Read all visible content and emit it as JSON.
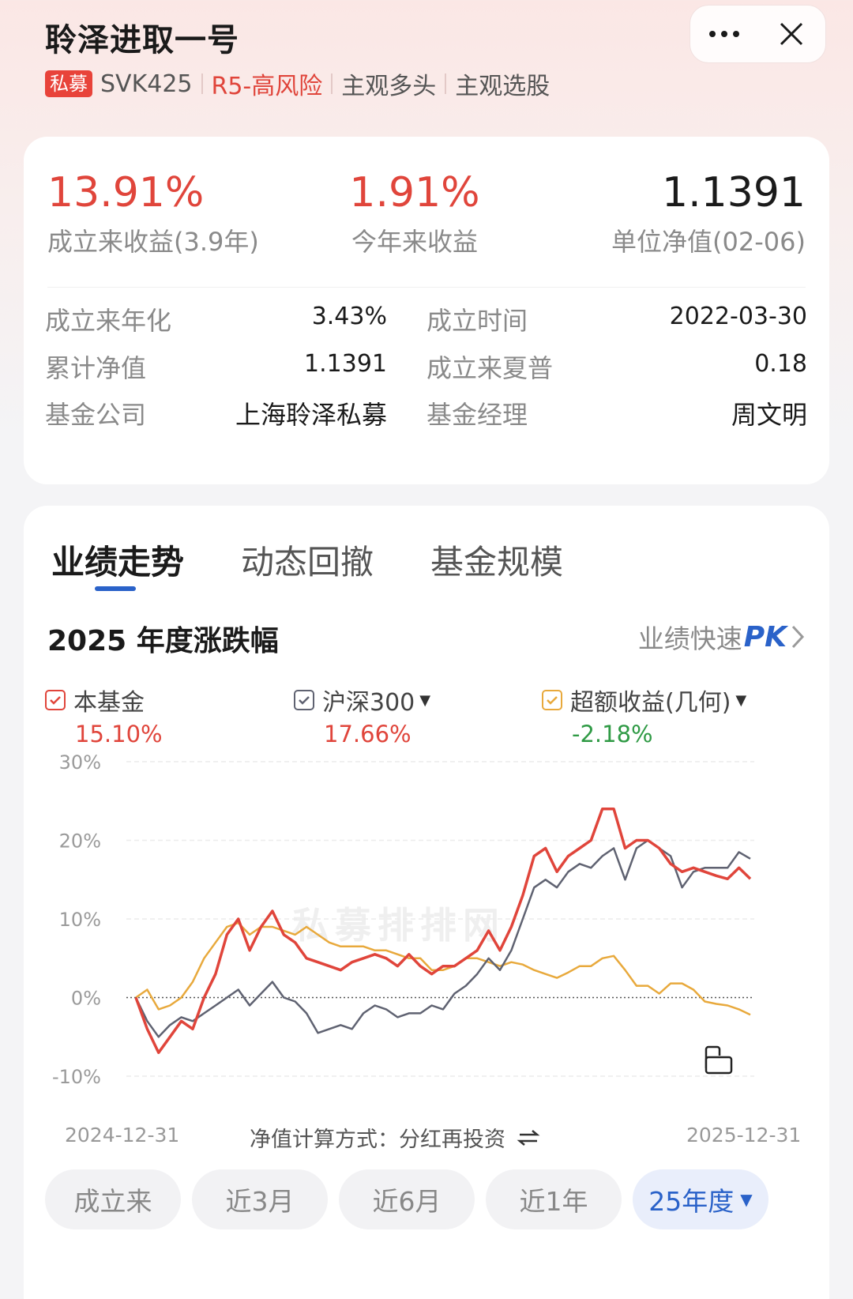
{
  "header": {
    "title": "聆泽进取一号",
    "badge": "私募",
    "code": "SVK425",
    "risk": "R5-高风险",
    "strategy1": "主观多头",
    "strategy2": "主观选股"
  },
  "capsule": {
    "more_icon": "more-dots-icon",
    "close_icon": "close-icon"
  },
  "summary": {
    "since_inception": {
      "value": "13.91%",
      "label": "成立来收益(3.9年)"
    },
    "ytd": {
      "value": "1.91%",
      "label": "今年来收益"
    },
    "nav": {
      "value": "1.1391",
      "label": "单位净值(02-06)"
    }
  },
  "details": {
    "annualized": {
      "label": "成立来年化",
      "value": "3.43%"
    },
    "inception_date": {
      "label": "成立时间",
      "value": "2022-03-30"
    },
    "cumulative_nav": {
      "label": "累计净值",
      "value": "1.1391"
    },
    "sharpe": {
      "label": "成立来夏普",
      "value": "0.18"
    },
    "company": {
      "label": "基金公司",
      "value": "上海聆泽私募"
    },
    "manager": {
      "label": "基金经理",
      "value": "周文明"
    }
  },
  "tabs": [
    "业绩走势",
    "动态回撤",
    "基金规模"
  ],
  "section": {
    "title": "2025 年度涨跌幅",
    "pk_prefix": "业绩快速",
    "pk": "PK"
  },
  "legend": [
    {
      "name": "本基金",
      "value": "15.10%",
      "color": "#e0453b"
    },
    {
      "name": "沪深300",
      "value": "17.66%",
      "color": "#5f6271"
    },
    {
      "name": "超额收益(几何)",
      "value": "-2.18%",
      "color": "#e8a93c"
    }
  ],
  "watermark": "私募排排网",
  "chart_data": {
    "type": "line",
    "x_start": "2024-12-31",
    "x_end": "2025-12-31",
    "yticks": [
      "30%",
      "20%",
      "10%",
      "0%",
      "-10%"
    ],
    "ylim": [
      -10,
      30
    ],
    "series": [
      {
        "name": "本基金",
        "color": "#e0453b",
        "values": [
          0,
          -4,
          -7,
          -5,
          -3,
          -4,
          0,
          3,
          8,
          10,
          6,
          9,
          11,
          8,
          7,
          5,
          4.5,
          4,
          3.5,
          4.5,
          5,
          5.5,
          5,
          4,
          5.5,
          4,
          3,
          4,
          4,
          5,
          6,
          8.5,
          6,
          9,
          13,
          18,
          19,
          16,
          18,
          19,
          20,
          24,
          24,
          19,
          20,
          20,
          19,
          17,
          16,
          16.5,
          16,
          15.5,
          15.1,
          16.5,
          15.1
        ]
      },
      {
        "name": "沪深300",
        "color": "#5f6271",
        "values": [
          0,
          -3,
          -5,
          -3.5,
          -2.5,
          -3,
          -2,
          -1,
          0,
          1,
          -1,
          0.5,
          2,
          0,
          -0.5,
          -2,
          -4.5,
          -4,
          -3.5,
          -4,
          -2,
          -1,
          -1.5,
          -2.5,
          -2,
          -2,
          -1,
          -1.5,
          0.5,
          1.5,
          3,
          5,
          3.5,
          6,
          10,
          14,
          15,
          14,
          16,
          17,
          16.5,
          18,
          19,
          15,
          19,
          20,
          19,
          18,
          14,
          16,
          16.5,
          16.5,
          16.5,
          18.5,
          17.66
        ]
      },
      {
        "name": "超额收益(几何)",
        "color": "#e8a93c",
        "values": [
          0,
          1,
          -1.5,
          -1,
          0,
          2,
          5,
          7,
          9,
          9.5,
          8,
          9,
          9,
          8.5,
          8,
          9,
          8,
          7,
          6.5,
          6.5,
          6.5,
          6,
          6,
          5.5,
          5,
          5,
          3.5,
          3.5,
          4,
          5,
          5,
          4.5,
          4,
          4.5,
          4.2,
          3.5,
          3,
          2.5,
          3.2,
          4,
          4,
          5,
          5.3,
          3.5,
          1.5,
          1.5,
          0.5,
          1.8,
          1.8,
          1,
          -0.5,
          -0.8,
          -1,
          -1.5,
          -2.18
        ]
      }
    ]
  },
  "chart_footer": {
    "start": "2024-12-31",
    "end": "2025-12-31",
    "method_label": "净值计算方式：",
    "method_value": "分红再投资"
  },
  "periods": [
    {
      "label": "成立来",
      "active": false
    },
    {
      "label": "近3月",
      "active": false
    },
    {
      "label": "近6月",
      "active": false
    },
    {
      "label": "近1年",
      "active": false
    },
    {
      "label": "25年度",
      "active": true
    }
  ]
}
